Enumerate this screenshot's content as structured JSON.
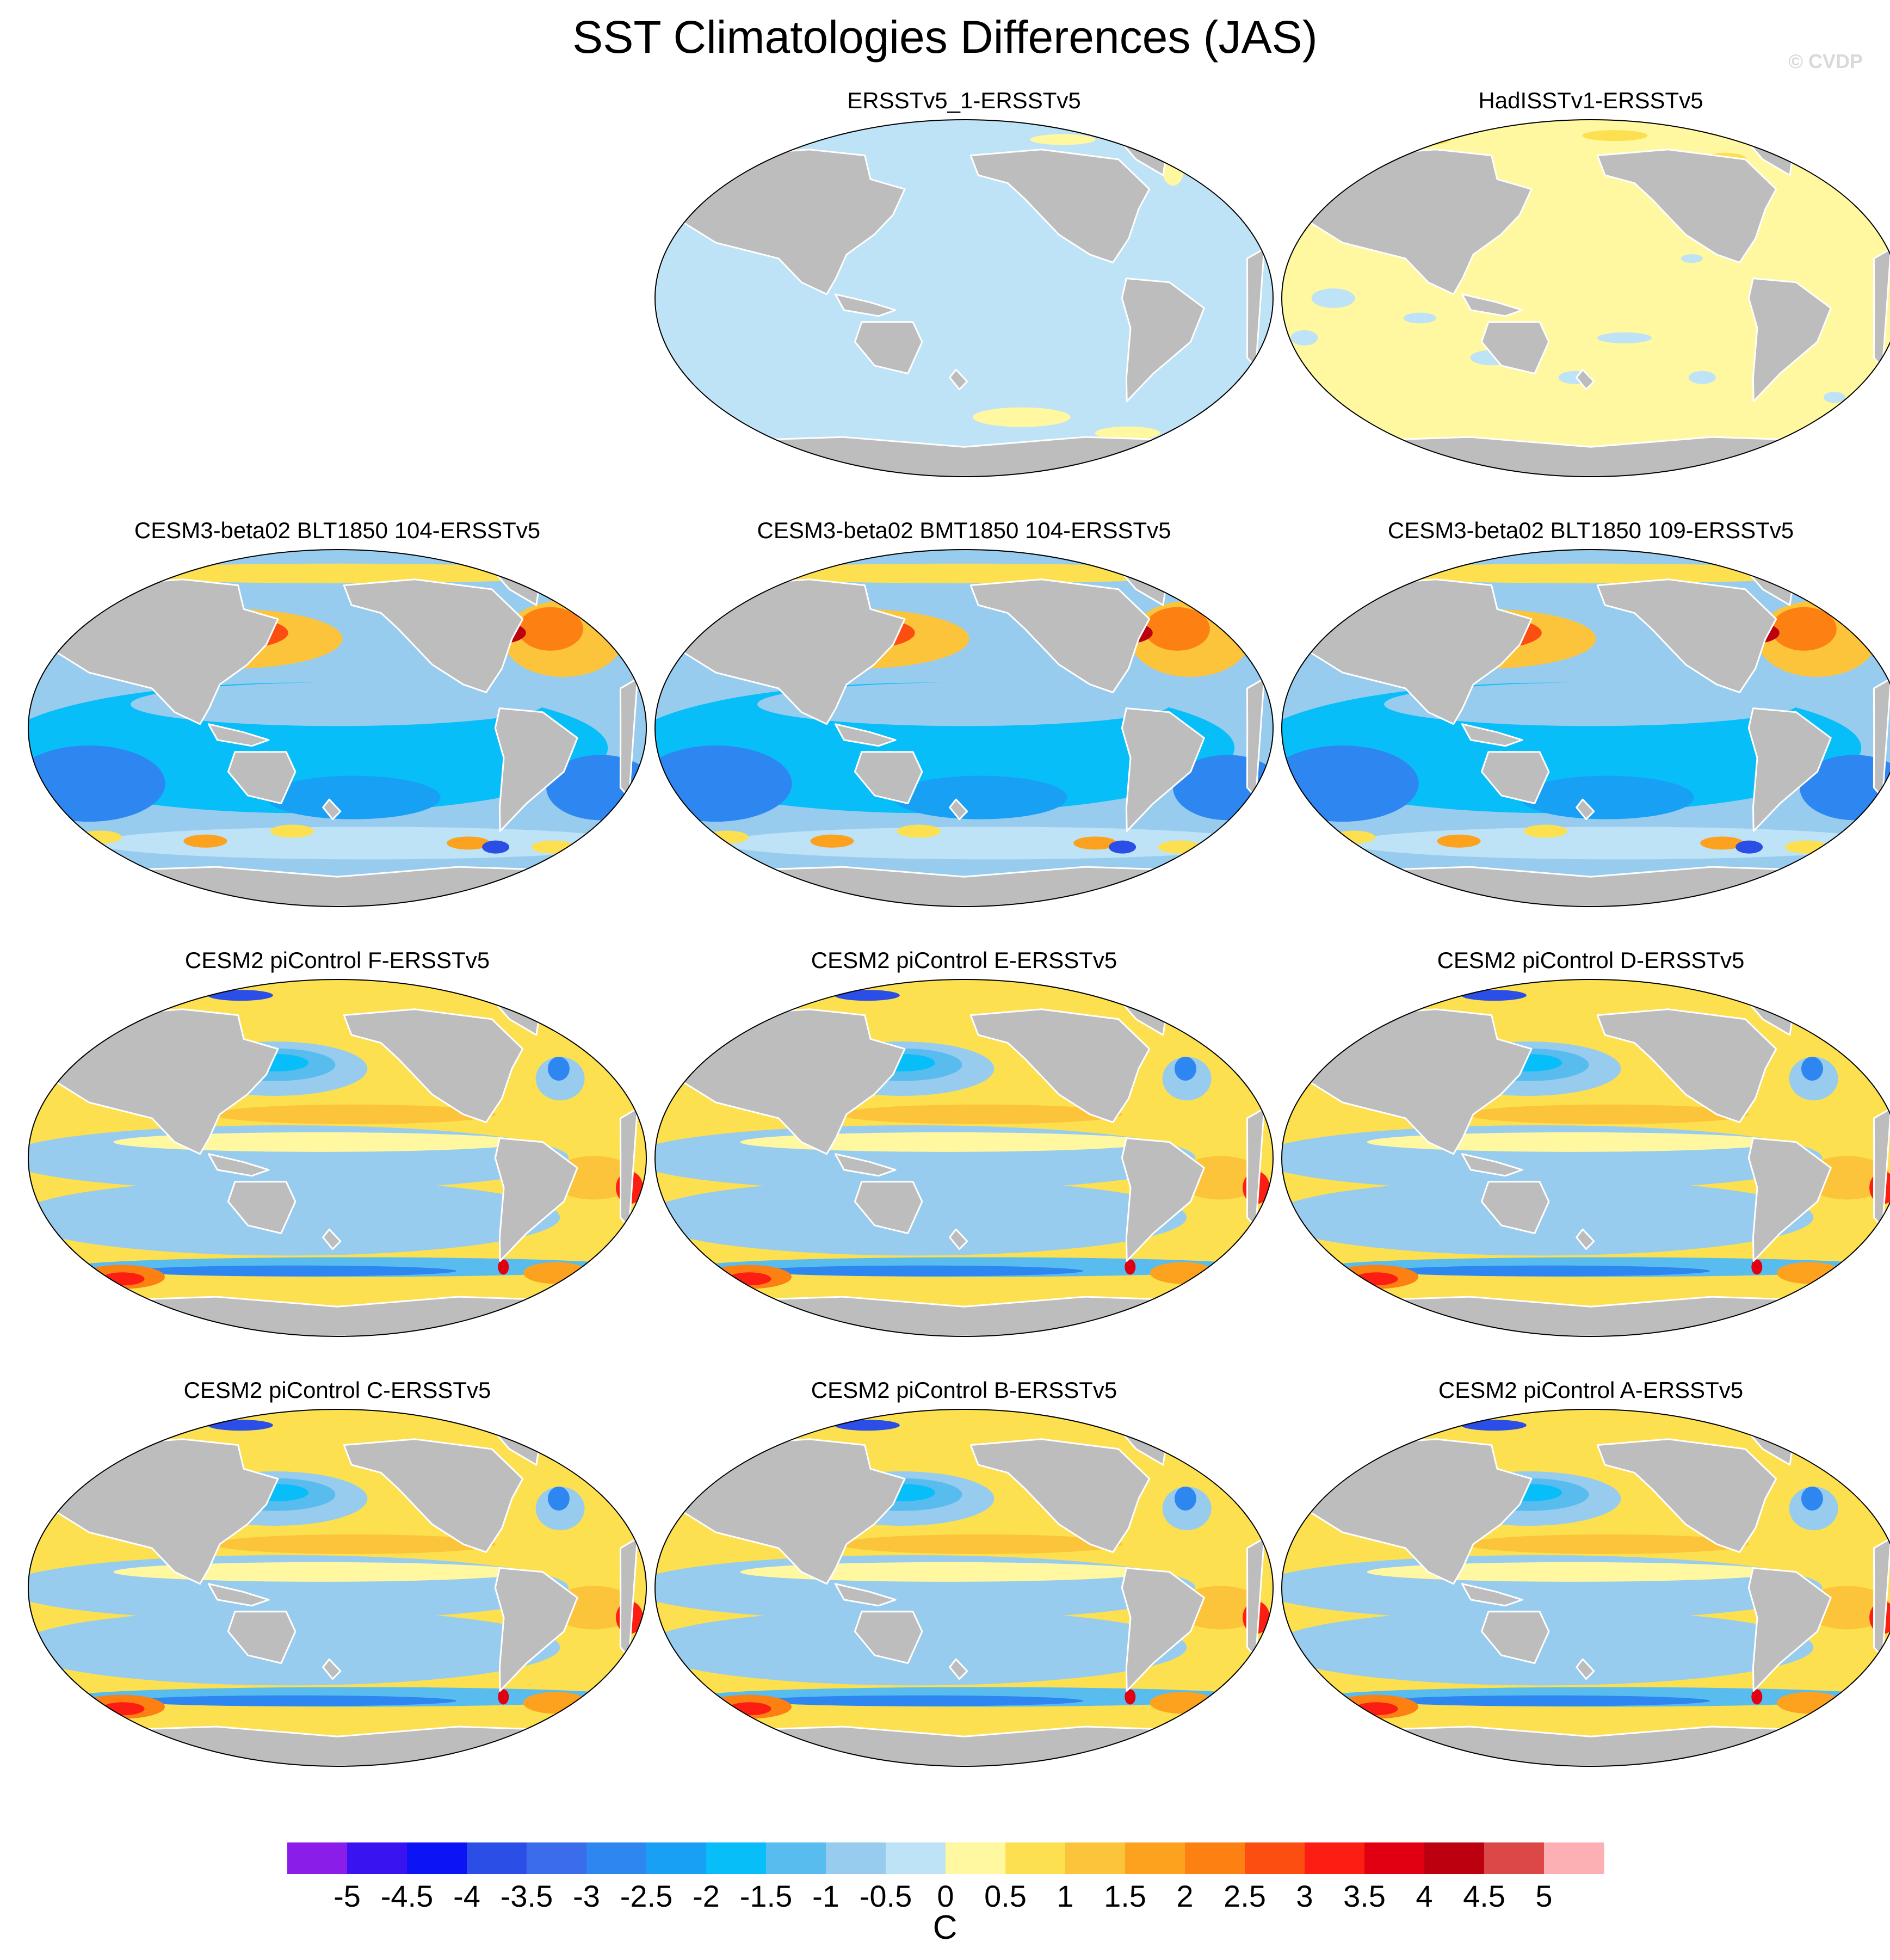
{
  "title": "SST Climatologies Differences (JAS)",
  "watermark": "© CVDP",
  "panels": [
    {
      "title": "ERSSTv5_1-ERSSTv5",
      "pattern": "uniform-light-blue"
    },
    {
      "title": "HadISSTv1-ERSSTv5",
      "pattern": "mostly-light-yellow"
    },
    {
      "title": "CESM3-beta02 BLT1850 104-ERSSTv5",
      "pattern": "cesm3"
    },
    {
      "title": "CESM3-beta02 BMT1850 104-ERSSTv5",
      "pattern": "cesm3"
    },
    {
      "title": "CESM3-beta02 BLT1850 109-ERSSTv5",
      "pattern": "cesm3"
    },
    {
      "title": "CESM2 piControl F-ERSSTv5",
      "pattern": "cesm2"
    },
    {
      "title": "CESM2 piControl E-ERSSTv5",
      "pattern": "cesm2"
    },
    {
      "title": "CESM2 piControl D-ERSSTv5",
      "pattern": "cesm2"
    },
    {
      "title": "CESM2 piControl C-ERSSTv5",
      "pattern": "cesm2"
    },
    {
      "title": "CESM2 piControl B-ERSSTv5",
      "pattern": "cesm2"
    },
    {
      "title": "CESM2 piControl A-ERSSTv5",
      "pattern": "cesm2"
    }
  ],
  "colorbar": {
    "unit": "C",
    "tick_labels": [
      "-5",
      "-4.5",
      "-4",
      "-3.5",
      "-3",
      "-2.5",
      "-2",
      "-1.5",
      "-1",
      "-0.5",
      "0",
      "0.5",
      "1",
      "1.5",
      "2",
      "2.5",
      "3",
      "3.5",
      "4",
      "4.5",
      "5"
    ],
    "colors": [
      "#8a1ee8",
      "#3a14f0",
      "#0a14f5",
      "#2a4ee6",
      "#3a6cec",
      "#2e86f0",
      "#18a0f5",
      "#08bef8",
      "#58bcee",
      "#98ccee",
      "#bee2f6",
      "#fff8a0",
      "#fce050",
      "#fcc43a",
      "#fca21e",
      "#fc8012",
      "#fc4e10",
      "#fc1e12",
      "#e00012",
      "#bc0010",
      "#dc4848",
      "#fcb0b4"
    ]
  },
  "colors": {
    "land": "#bdbdbd",
    "coast": "#ffffff"
  }
}
